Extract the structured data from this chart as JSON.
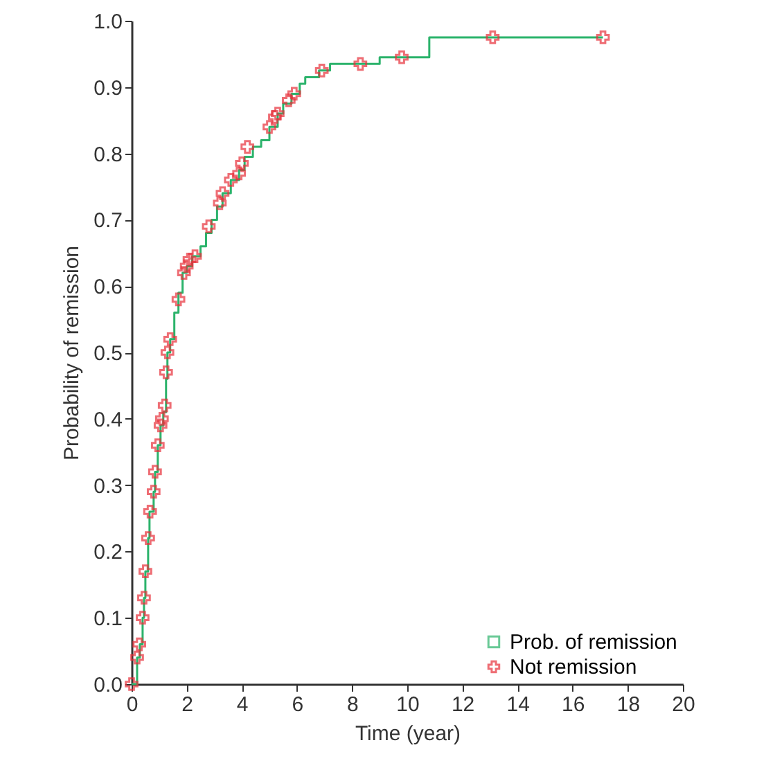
{
  "chart_data": {
    "type": "step",
    "xlabel": "Time (year)",
    "ylabel": "Probability of remission",
    "xlim": [
      0,
      20
    ],
    "xticks": [
      0,
      2,
      4,
      6,
      8,
      10,
      12,
      14,
      16,
      18,
      20
    ],
    "ylim": [
      0,
      1
    ],
    "yticks": [
      {
        "value": 0,
        "label": "0.0"
      },
      0.1,
      0.2,
      0.3,
      0.4,
      0.5,
      0.6,
      0.7,
      0.8,
      0.9,
      {
        "value": 1,
        "label": "1.0"
      }
    ],
    "grid": false,
    "legend": "bottom right",
    "series": [
      {
        "name": "Prob. of remission",
        "type": "step",
        "color": "#2bb36b",
        "x": [
          0,
          0.2,
          0.3,
          0.4,
          0.45,
          0.5,
          0.6,
          0.65,
          0.8,
          0.85,
          0.95,
          1.05,
          1.15,
          1.25,
          1.3,
          1.4,
          1.55,
          1.7,
          1.85,
          2.0,
          2.2,
          2.5,
          2.7,
          2.9,
          3.1,
          3.3,
          3.6,
          3.9,
          4.1,
          4.4,
          4.7,
          5.0,
          5.3,
          5.5,
          5.8,
          6.1,
          6.3,
          6.8,
          7.2,
          9.0,
          10.8,
          17.1
        ],
        "values": [
          0,
          0.04,
          0.06,
          0.1,
          0.13,
          0.17,
          0.22,
          0.26,
          0.29,
          0.32,
          0.36,
          0.39,
          0.41,
          0.46,
          0.5,
          0.52,
          0.56,
          0.59,
          0.62,
          0.63,
          0.645,
          0.66,
          0.68,
          0.7,
          0.72,
          0.74,
          0.76,
          0.775,
          0.795,
          0.81,
          0.82,
          0.84,
          0.86,
          0.875,
          0.89,
          0.905,
          0.915,
          0.925,
          0.935,
          0.945,
          0.975,
          0.975
        ]
      },
      {
        "name": "Not remission",
        "type": "scatter",
        "color": "#e8303a",
        "marker": "cross",
        "x": [
          0,
          0.2,
          0.28,
          0.4,
          0.45,
          0.5,
          0.6,
          0.67,
          0.8,
          0.85,
          0.95,
          1.05,
          1.1,
          1.2,
          1.25,
          1.3,
          1.4,
          1.7,
          1.9,
          2.0,
          2.1,
          2.3,
          2.8,
          3.2,
          3.3,
          3.6,
          3.9,
          4.0,
          4.2,
          5.0,
          5.2,
          5.3,
          5.7,
          5.9,
          6.9,
          8.3,
          9.8,
          13.1,
          17.1
        ],
        "values": [
          0,
          0.04,
          0.06,
          0.1,
          0.13,
          0.17,
          0.22,
          0.26,
          0.29,
          0.32,
          0.36,
          0.39,
          0.4,
          0.42,
          0.47,
          0.5,
          0.52,
          0.58,
          0.62,
          0.63,
          0.64,
          0.645,
          0.69,
          0.725,
          0.74,
          0.76,
          0.77,
          0.785,
          0.81,
          0.84,
          0.855,
          0.86,
          0.88,
          0.89,
          0.925,
          0.935,
          0.945,
          0.975,
          0.975
        ]
      }
    ]
  }
}
